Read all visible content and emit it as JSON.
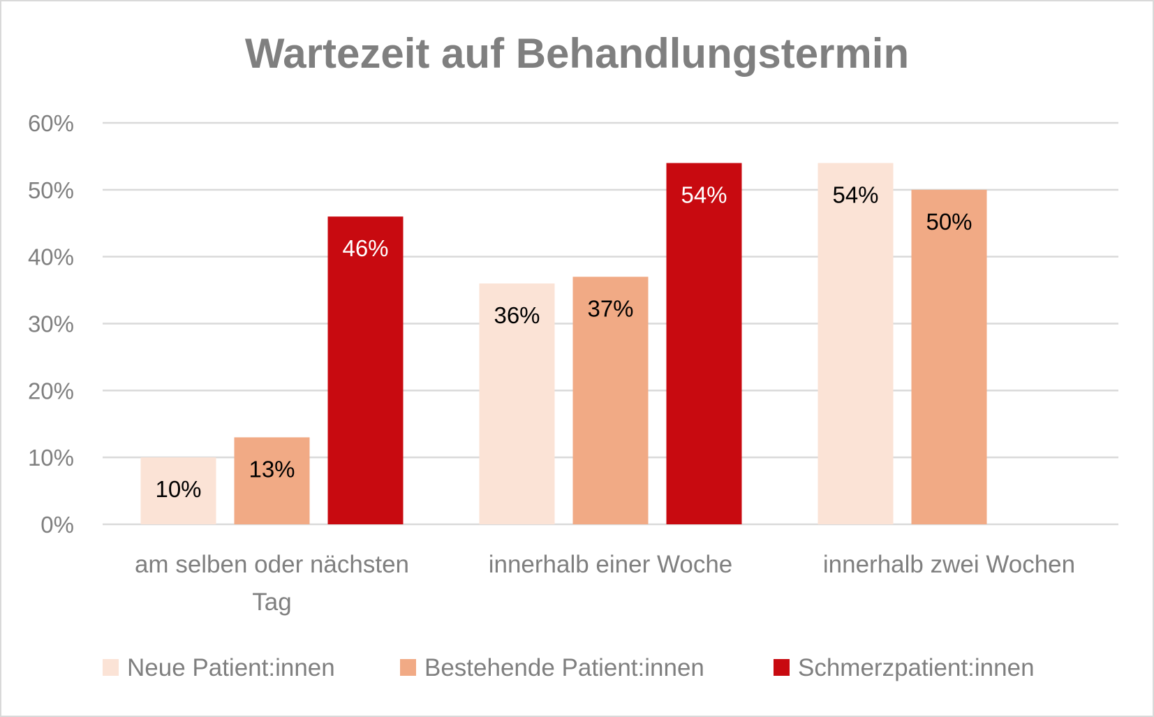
{
  "chart_data": {
    "type": "bar",
    "title": "Wartezeit auf Behandlungstermin",
    "xlabel": "",
    "ylabel": "",
    "ylim": [
      0,
      60
    ],
    "yticks": [
      0,
      10,
      20,
      30,
      40,
      50,
      60
    ],
    "ytick_labels": [
      "0%",
      "10%",
      "20%",
      "30%",
      "40%",
      "50%",
      "60%"
    ],
    "grid": true,
    "legend_position": "bottom",
    "categories": [
      [
        "am selben oder nächsten",
        "Tag"
      ],
      [
        "innerhalb einer Woche"
      ],
      [
        "innerhalb zwei Wochen"
      ]
    ],
    "series": [
      {
        "name": "Neue Patient:innen",
        "color": "#fbe3d6",
        "label_color": "#000000",
        "values": [
          10,
          36,
          54
        ],
        "labels": [
          "10%",
          "36%",
          "54%"
        ]
      },
      {
        "name": "Bestehende Patient:innen",
        "color": "#f1aa85",
        "label_color": "#000000",
        "values": [
          13,
          37,
          50
        ],
        "labels": [
          "13%",
          "37%",
          "50%"
        ]
      },
      {
        "name": "Schmerzpatient:innen",
        "color": "#c80a10",
        "label_color": "#ffffff",
        "values": [
          46,
          54,
          null
        ],
        "labels": [
          "46%",
          "54%",
          null
        ]
      }
    ]
  }
}
